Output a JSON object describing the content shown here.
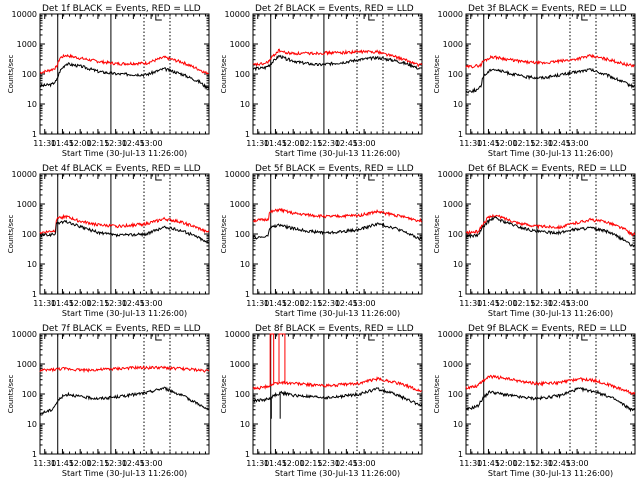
{
  "chart_data": {
    "type": "line",
    "figure": "RHESSI detector 1-9 count rates, BLACK = Events, RED = LLD",
    "panels": [
      {
        "title": "Det 1f BLACK = Events, RED = LLD",
        "xlabel": "Start Time (30-Jul-13 11:26:00)",
        "ylabel": "Counts/sec",
        "black_anchors": [
          [
            0,
            40
          ],
          [
            10,
            45
          ],
          [
            14,
            60
          ],
          [
            17,
            130
          ],
          [
            22,
            220
          ],
          [
            35,
            180
          ],
          [
            50,
            120
          ],
          [
            65,
            100
          ],
          [
            90,
            95
          ],
          [
            105,
            150
          ],
          [
            120,
            100
          ],
          [
            135,
            55
          ],
          [
            140,
            38
          ]
        ],
        "red_anchors": [
          [
            0,
            110
          ],
          [
            10,
            140
          ],
          [
            14,
            170
          ],
          [
            17,
            350
          ],
          [
            22,
            420
          ],
          [
            35,
            330
          ],
          [
            50,
            260
          ],
          [
            65,
            220
          ],
          [
            90,
            230
          ],
          [
            105,
            360
          ],
          [
            120,
            250
          ],
          [
            135,
            140
          ],
          [
            140,
            110
          ]
        ],
        "spikes": []
      },
      {
        "title": "Det 2f BLACK = Events, RED = LLD",
        "xlabel": "Start Time (30-Jul-13 11:26:00)",
        "ylabel": "Counts/sec",
        "black_anchors": [
          [
            0,
            150
          ],
          [
            10,
            160
          ],
          [
            14,
            200
          ],
          [
            17,
            260
          ],
          [
            22,
            400
          ],
          [
            28,
            320
          ],
          [
            40,
            240
          ],
          [
            55,
            200
          ],
          [
            75,
            240
          ],
          [
            90,
            300
          ],
          [
            105,
            350
          ],
          [
            120,
            280
          ],
          [
            135,
            190
          ],
          [
            140,
            150
          ]
        ],
        "red_anchors": [
          [
            0,
            200
          ],
          [
            10,
            220
          ],
          [
            14,
            280
          ],
          [
            17,
            400
          ],
          [
            22,
            620
          ],
          [
            28,
            500
          ],
          [
            40,
            480
          ],
          [
            55,
            500
          ],
          [
            75,
            520
          ],
          [
            90,
            550
          ],
          [
            105,
            560
          ],
          [
            120,
            380
          ],
          [
            135,
            240
          ],
          [
            140,
            200
          ]
        ],
        "spikes": []
      },
      {
        "title": "Det 3f BLACK = Events, RED = LLD",
        "xlabel": "Start Time (30-Jul-13 11:26:00)",
        "ylabel": "Counts/sec",
        "black_anchors": [
          [
            0,
            25
          ],
          [
            10,
            30
          ],
          [
            13,
            40
          ],
          [
            14,
            80
          ],
          [
            22,
            150
          ],
          [
            35,
            110
          ],
          [
            50,
            80
          ],
          [
            65,
            75
          ],
          [
            90,
            110
          ],
          [
            105,
            140
          ],
          [
            120,
            90
          ],
          [
            135,
            50
          ],
          [
            140,
            40
          ]
        ],
        "red_anchors": [
          [
            0,
            170
          ],
          [
            10,
            190
          ],
          [
            13,
            200
          ],
          [
            14,
            260
          ],
          [
            22,
            380
          ],
          [
            35,
            310
          ],
          [
            50,
            250
          ],
          [
            65,
            230
          ],
          [
            90,
            300
          ],
          [
            105,
            400
          ],
          [
            120,
            310
          ],
          [
            135,
            210
          ],
          [
            140,
            190
          ]
        ],
        "spikes": []
      },
      {
        "title": "Det 4f BLACK = Events, RED = LLD",
        "xlabel": "Start Time (30-Jul-13 11:26:00)",
        "ylabel": "Counts/sec",
        "black_anchors": [
          [
            0,
            90
          ],
          [
            10,
            95
          ],
          [
            13,
            100
          ],
          [
            14,
            230
          ],
          [
            22,
            260
          ],
          [
            35,
            170
          ],
          [
            50,
            110
          ],
          [
            65,
            90
          ],
          [
            90,
            100
          ],
          [
            105,
            170
          ],
          [
            120,
            130
          ],
          [
            135,
            75
          ],
          [
            140,
            55
          ]
        ],
        "red_anchors": [
          [
            0,
            110
          ],
          [
            10,
            125
          ],
          [
            13,
            130
          ],
          [
            14,
            350
          ],
          [
            22,
            380
          ],
          [
            35,
            260
          ],
          [
            50,
            200
          ],
          [
            65,
            180
          ],
          [
            90,
            220
          ],
          [
            105,
            320
          ],
          [
            120,
            250
          ],
          [
            135,
            150
          ],
          [
            140,
            120
          ]
        ],
        "spikes": []
      },
      {
        "title": "Det 5f BLACK = Events, RED = LLD",
        "xlabel": "Start Time (30-Jul-13 11:26:00)",
        "ylabel": "Counts/sec",
        "black_anchors": [
          [
            0,
            75
          ],
          [
            10,
            80
          ],
          [
            13,
            90
          ],
          [
            14,
            160
          ],
          [
            22,
            200
          ],
          [
            35,
            150
          ],
          [
            50,
            120
          ],
          [
            65,
            110
          ],
          [
            90,
            140
          ],
          [
            105,
            220
          ],
          [
            120,
            160
          ],
          [
            135,
            90
          ],
          [
            140,
            70
          ]
        ],
        "red_anchors": [
          [
            0,
            280
          ],
          [
            10,
            300
          ],
          [
            13,
            320
          ],
          [
            14,
            520
          ],
          [
            22,
            650
          ],
          [
            35,
            480
          ],
          [
            50,
            420
          ],
          [
            65,
            380
          ],
          [
            90,
            420
          ],
          [
            105,
            560
          ],
          [
            120,
            430
          ],
          [
            135,
            320
          ],
          [
            140,
            280
          ]
        ],
        "spikes": []
      },
      {
        "title": "Det 6f BLACK = Events, RED = LLD",
        "xlabel": "Start Time (30-Jul-13 11:26:00)",
        "ylabel": "Counts/sec",
        "black_anchors": [
          [
            0,
            85
          ],
          [
            10,
            90
          ],
          [
            14,
            160
          ],
          [
            18,
            250
          ],
          [
            24,
            350
          ],
          [
            30,
            280
          ],
          [
            45,
            170
          ],
          [
            60,
            120
          ],
          [
            80,
            110
          ],
          [
            90,
            140
          ],
          [
            105,
            160
          ],
          [
            120,
            120
          ],
          [
            135,
            60
          ],
          [
            140,
            40
          ]
        ],
        "red_anchors": [
          [
            0,
            110
          ],
          [
            10,
            120
          ],
          [
            14,
            200
          ],
          [
            18,
            330
          ],
          [
            24,
            420
          ],
          [
            30,
            360
          ],
          [
            45,
            230
          ],
          [
            60,
            180
          ],
          [
            80,
            170
          ],
          [
            90,
            220
          ],
          [
            105,
            300
          ],
          [
            120,
            250
          ],
          [
            135,
            140
          ],
          [
            140,
            100
          ]
        ],
        "spikes": []
      },
      {
        "title": "Det 7f BLACK = Events, RED = LLD",
        "xlabel": "Start Time (30-Jul-13 11:26:00)",
        "ylabel": "Counts/sec",
        "black_anchors": [
          [
            0,
            22
          ],
          [
            10,
            30
          ],
          [
            14,
            50
          ],
          [
            18,
            80
          ],
          [
            24,
            100
          ],
          [
            35,
            80
          ],
          [
            50,
            70
          ],
          [
            65,
            80
          ],
          [
            90,
            110
          ],
          [
            105,
            160
          ],
          [
            120,
            90
          ],
          [
            135,
            45
          ],
          [
            140,
            32
          ]
        ],
        "red_anchors": [
          [
            0,
            600
          ],
          [
            20,
            700
          ],
          [
            40,
            620
          ],
          [
            60,
            680
          ],
          [
            80,
            750
          ],
          [
            100,
            760
          ],
          [
            120,
            700
          ],
          [
            140,
            600
          ]
        ],
        "spikes": []
      },
      {
        "title": "Det 8f BLACK = Events, RED = LLD",
        "xlabel": "Start Time (30-Jul-13 11:26:00)",
        "ylabel": "Counts/sec",
        "black_anchors": [
          [
            0,
            60
          ],
          [
            10,
            65
          ],
          [
            14,
            70
          ],
          [
            18,
            90
          ],
          [
            24,
            110
          ],
          [
            35,
            90
          ],
          [
            50,
            80
          ],
          [
            65,
            75
          ],
          [
            90,
            100
          ],
          [
            105,
            150
          ],
          [
            120,
            100
          ],
          [
            135,
            55
          ],
          [
            140,
            45
          ]
        ],
        "red_anchors": [
          [
            0,
            150
          ],
          [
            10,
            170
          ],
          [
            14,
            190
          ],
          [
            18,
            220
          ],
          [
            24,
            240
          ],
          [
            35,
            230
          ],
          [
            50,
            200
          ],
          [
            65,
            190
          ],
          [
            90,
            230
          ],
          [
            105,
            320
          ],
          [
            120,
            250
          ],
          [
            135,
            160
          ],
          [
            140,
            130
          ]
        ],
        "spikes": [
          [
            14.5,
            17.5,
            10000
          ],
          [
            22,
            27,
            10000
          ]
        ]
      },
      {
        "title": "Det 9f BLACK = Events, RED = LLD",
        "xlabel": "Start Time (30-Jul-13 11:26:00)",
        "ylabel": "Counts/sec",
        "black_anchors": [
          [
            0,
            30
          ],
          [
            10,
            40
          ],
          [
            14,
            70
          ],
          [
            20,
            120
          ],
          [
            30,
            100
          ],
          [
            45,
            80
          ],
          [
            60,
            70
          ],
          [
            80,
            90
          ],
          [
            95,
            150
          ],
          [
            110,
            120
          ],
          [
            125,
            70
          ],
          [
            135,
            40
          ],
          [
            140,
            30
          ]
        ],
        "red_anchors": [
          [
            0,
            160
          ],
          [
            10,
            190
          ],
          [
            14,
            280
          ],
          [
            20,
            380
          ],
          [
            30,
            350
          ],
          [
            45,
            270
          ],
          [
            60,
            220
          ],
          [
            80,
            240
          ],
          [
            95,
            320
          ],
          [
            110,
            280
          ],
          [
            125,
            180
          ],
          [
            135,
            130
          ],
          [
            140,
            110
          ]
        ],
        "spikes": []
      }
    ],
    "x_unit": "minutes since 11:26:00",
    "xlim": [
      0,
      143
    ],
    "x_ticks": [
      {
        "x": 4,
        "label": "11:30"
      },
      {
        "x": 19,
        "label": "11:45"
      },
      {
        "x": 34,
        "label": "12:00"
      },
      {
        "x": 49,
        "label": "12:15"
      },
      {
        "x": 64,
        "label": "12:30"
      },
      {
        "x": 79,
        "label": "12:45"
      },
      {
        "x": 94,
        "label": "13:00"
      }
    ],
    "y_scale": "log",
    "ylim": [
      1,
      10000
    ],
    "y_ticks": [
      {
        "y": 1,
        "label": "1"
      },
      {
        "y": 10,
        "label": "10"
      },
      {
        "y": 100,
        "label": "100"
      },
      {
        "y": 1000,
        "label": "1000"
      },
      {
        "y": 10000,
        "label": "10000"
      }
    ],
    "solid_vlines": [
      [
        15,
        60
      ],
      [
        15,
        60
      ],
      [
        15,
        60
      ],
      [
        15,
        60
      ],
      [
        15,
        60
      ],
      [
        15,
        60
      ],
      [
        15,
        60
      ],
      [
        15,
        60
      ],
      [
        15,
        60
      ]
    ],
    "dotted_vlines": [
      [
        88,
        110
      ],
      [
        88,
        110
      ],
      [
        88,
        110
      ],
      [
        88,
        110
      ],
      [
        88,
        110
      ],
      [
        88,
        110
      ],
      [
        88,
        110
      ],
      [
        88,
        110
      ],
      [
        88,
        110
      ]
    ],
    "series_colors": {
      "events": "#000000",
      "lld": "#ff0000"
    }
  }
}
